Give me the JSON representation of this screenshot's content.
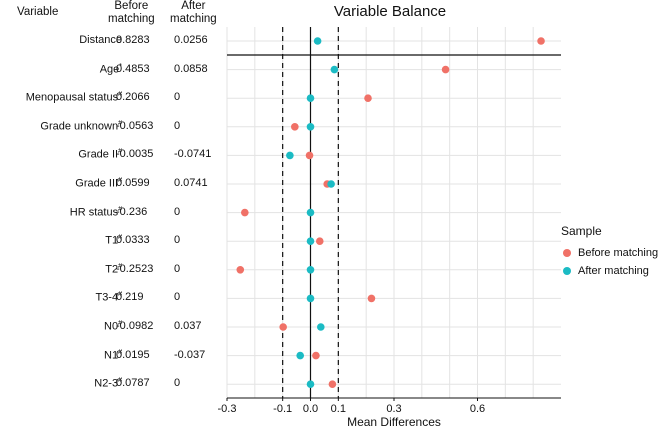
{
  "table": {
    "headers": {
      "variable": "Variable",
      "before_line1": "Before",
      "before_line2": "matching",
      "after_line1": "After",
      "after_line2": "matching"
    },
    "rows": [
      {
        "variable": "Distance",
        "before": "0.8283",
        "after": "0.0256"
      },
      {
        "variable": "Age*",
        "before": "0.4853",
        "after": "0.0858"
      },
      {
        "variable": "Menopausal status#",
        "before": "0.2066",
        "after": "0"
      },
      {
        "variable": "Grade unknown#",
        "before": "-0.0563",
        "after": "0"
      },
      {
        "variable": "Grade II#",
        "before": "-0.0035",
        "after": "-0.0741"
      },
      {
        "variable": "Grade III#",
        "before": "0.0599",
        "after": "0.0741"
      },
      {
        "variable": "HR status#",
        "before": "-0.236",
        "after": "0"
      },
      {
        "variable": "T1#",
        "before": "0.0333",
        "after": "0"
      },
      {
        "variable": "T2#",
        "before": "-0.2523",
        "after": "0"
      },
      {
        "variable": "T3-4#",
        "before": "0.219",
        "after": "0"
      },
      {
        "variable": "N0#",
        "before": "-0.0982",
        "after": "0.037"
      },
      {
        "variable": "N1#",
        "before": "0.0195",
        "after": "-0.037"
      },
      {
        "variable": "N2-3#",
        "before": "0.0787",
        "after": "0"
      }
    ]
  },
  "chart_data": {
    "type": "scatter",
    "title": "Variable Balance",
    "xlabel": "Mean Differences",
    "ylabel": "",
    "xlim": [
      -0.3,
      0.9
    ],
    "xticks": [
      -0.3,
      -0.1,
      0.0,
      0.1,
      0.3,
      0.6
    ],
    "xtick_labels": [
      "-0.3",
      "-0.1",
      "0.0",
      "0.1",
      "0.3",
      "0.6"
    ],
    "reference_lines": {
      "solid": 0.0,
      "dashed": [
        -0.1,
        0.1
      ]
    },
    "categories": [
      "Distance",
      "Age*",
      "Menopausal status#",
      "Grade unknown#",
      "Grade II#",
      "Grade III#",
      "HR status#",
      "T1#",
      "T2#",
      "T3-4#",
      "N0#",
      "N1#",
      "N2-3#"
    ],
    "series": [
      {
        "name": "Before matching",
        "color": "#f07167",
        "values": [
          0.8283,
          0.4853,
          0.2066,
          -0.0563,
          -0.0035,
          0.0599,
          -0.236,
          0.0333,
          -0.2523,
          0.219,
          -0.0982,
          0.0195,
          0.0787
        ]
      },
      {
        "name": "After matching",
        "color": "#1bbbc4",
        "values": [
          0.0256,
          0.0858,
          0,
          0,
          -0.0741,
          0.0741,
          0,
          0,
          0,
          0,
          0.037,
          -0.037,
          0
        ]
      }
    ],
    "legend": {
      "title": "Sample",
      "position": "right"
    }
  }
}
